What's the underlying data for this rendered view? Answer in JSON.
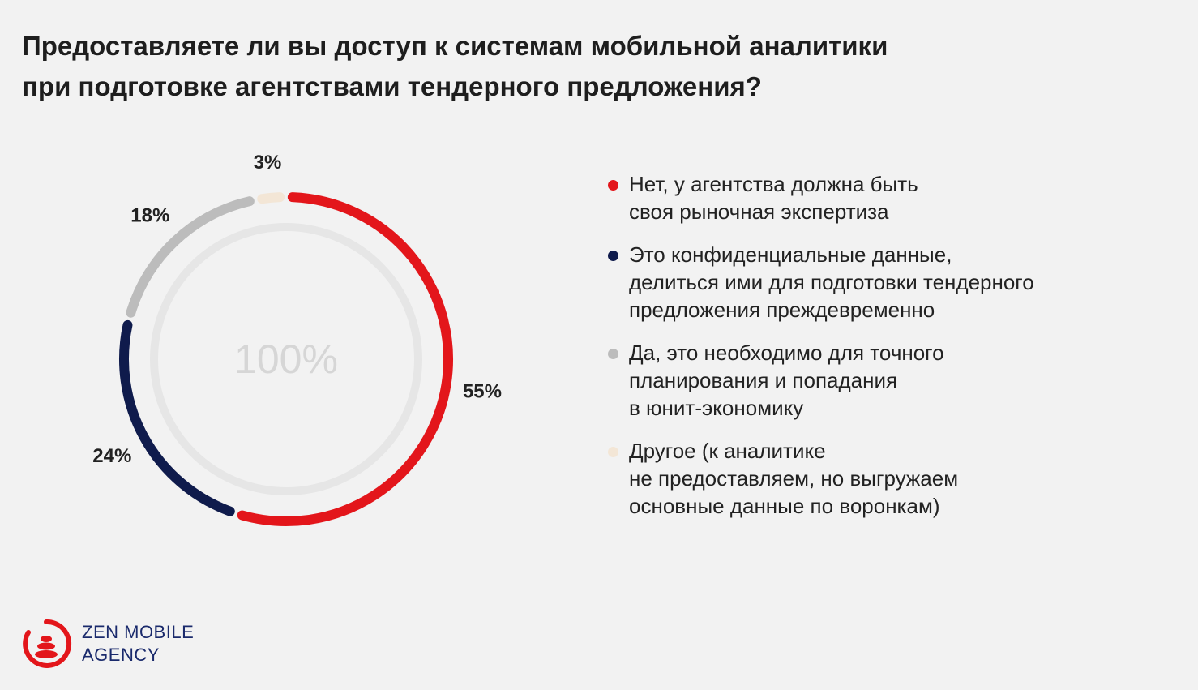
{
  "title": {
    "line1": "Предоставляете ли вы доступ к системам мобильной аналитики",
    "line2": "при подготовке агентствами тендерного предложения?"
  },
  "chart_data": {
    "type": "pie",
    "center_label": "100%",
    "series": [
      {
        "value": 55,
        "label": "55%",
        "color": "#e3161b",
        "legend": [
          "Нет, у агентства должна быть",
          "своя рыночная экспертиза"
        ]
      },
      {
        "value": 24,
        "label": "24%",
        "color": "#0f1b4c",
        "legend": [
          "Это конфиденциальные данные,",
          "делиться ими для подготовки тендерного",
          "предложения преждевременно"
        ]
      },
      {
        "value": 18,
        "label": "18%",
        "color": "#bcbcbc",
        "legend": [
          "Да, это необходимо для точного",
          "планирования и попадания",
          "в юнит-экономику"
        ]
      },
      {
        "value": 3,
        "label": "3%",
        "color": "#f3e6d6",
        "legend": [
          "Другое (к аналитике",
          "не предоставляем, но выгружаем",
          "основные данные по воронкам)"
        ]
      }
    ],
    "legend_position": "right"
  },
  "logo": {
    "line1": "ZEN MOBILE",
    "line2": "AGENCY",
    "color": "#1a2a6c",
    "accent": "#e3161b"
  }
}
